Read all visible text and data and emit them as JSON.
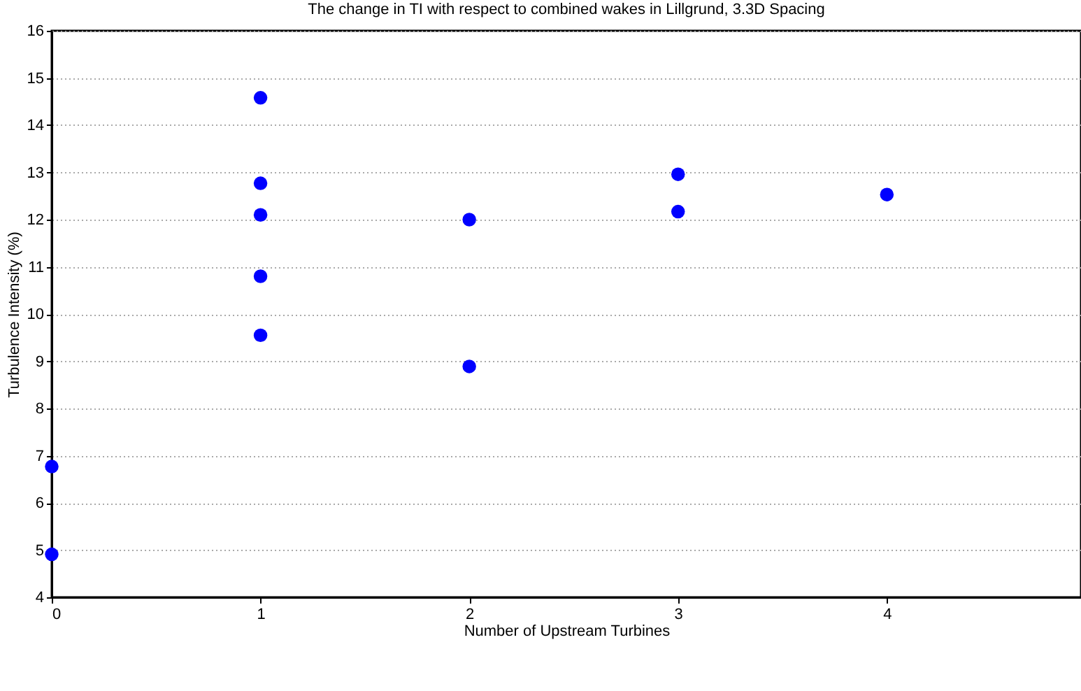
{
  "chart_data": {
    "type": "scatter",
    "title": "The change in TI with respect to combined wakes in Lillgrund, 3.3D Spacing",
    "xlabel": "Number of Upstream Turbines",
    "ylabel": "Turbulence Intensity (%)",
    "x": [
      0,
      0,
      1,
      1,
      1,
      1,
      1,
      2,
      2,
      3,
      3,
      4
    ],
    "values": [
      6.77,
      4.91,
      14.58,
      12.77,
      12.1,
      10.8,
      9.55,
      12.0,
      8.89,
      12.96,
      12.17,
      12.53
    ],
    "color": "#0000ff",
    "marker": "circle",
    "xlim": [
      0,
      4.93
    ],
    "xticks": [
      0,
      1,
      2,
      3,
      4
    ],
    "ylim": [
      4,
      16
    ],
    "yticks": [
      4,
      5,
      6,
      7,
      8,
      9,
      10,
      11,
      12,
      13,
      14,
      15,
      16
    ],
    "grid": "y"
  }
}
